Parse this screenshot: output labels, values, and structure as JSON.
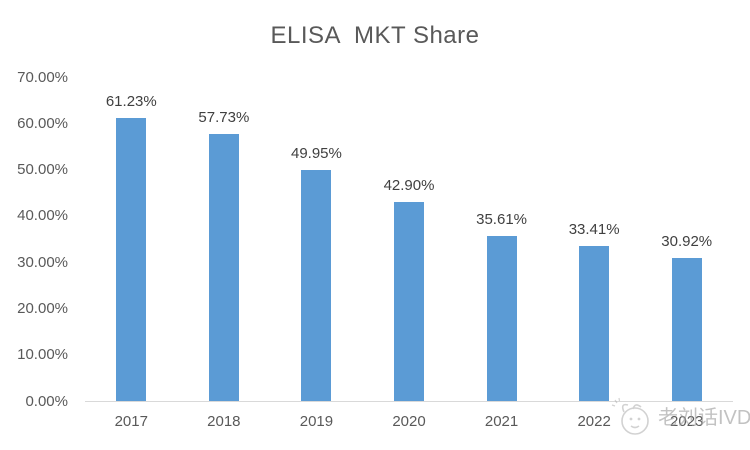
{
  "watermark": {
    "text": "老刘话IVD",
    "icon": "cartoon-face-icon"
  },
  "colors": {
    "bar": "#5B9BD5",
    "title_text": "#595959",
    "axis_text": "#595959",
    "data_label_text": "#404040",
    "axis_line": "#D9D9D9",
    "watermark_text": "#9E9E9E"
  },
  "chart_data": {
    "type": "bar",
    "title": "ELISA  MKT Share",
    "categories": [
      "2017",
      "2018",
      "2019",
      "2020",
      "2021",
      "2022",
      "2023"
    ],
    "values": [
      61.23,
      57.73,
      49.95,
      42.9,
      35.61,
      33.41,
      30.92
    ],
    "data_labels": [
      "61.23%",
      "57.73%",
      "49.95%",
      "42.90%",
      "35.61%",
      "33.41%",
      "30.92%"
    ],
    "y_ticks": [
      "70.00%",
      "60.00%",
      "50.00%",
      "40.00%",
      "30.00%",
      "20.00%",
      "10.00%",
      "0.00%"
    ],
    "xlabel": "",
    "ylabel": "",
    "ylim": [
      0,
      70
    ],
    "grid": false,
    "legend": false
  }
}
